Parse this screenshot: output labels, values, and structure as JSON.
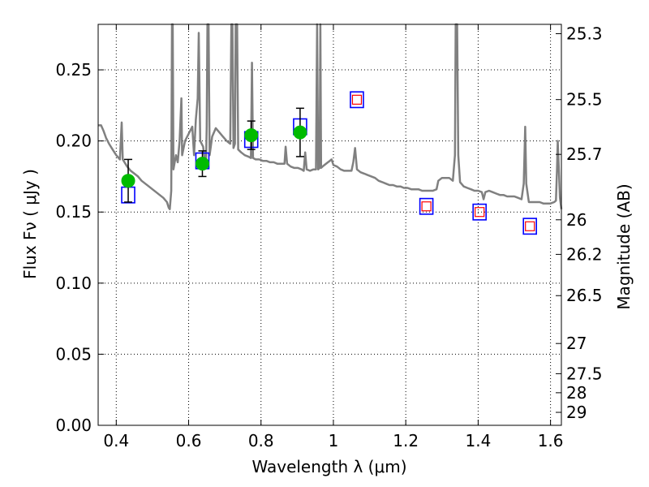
{
  "chart_data": {
    "type": "scatter",
    "xlabel": "Wavelength  λ (μm)",
    "ylabel": "Flux  Fν  ( μJy )",
    "y2label": "Magnitude (AB)",
    "xlim": [
      0.35,
      1.63
    ],
    "ylim": [
      0.0,
      0.282
    ],
    "grid": true,
    "x_ticks": [
      {
        "value": 0.4,
        "label": "0.4"
      },
      {
        "value": 0.6,
        "label": "0.6"
      },
      {
        "value": 0.8,
        "label": "0.8"
      },
      {
        "value": 1.0,
        "label": "1"
      },
      {
        "value": 1.2,
        "label": "1.2"
      },
      {
        "value": 1.4,
        "label": "1.4"
      },
      {
        "value": 1.6,
        "label": "1.6"
      }
    ],
    "y_ticks": [
      {
        "value": 0.0,
        "label": "0.00"
      },
      {
        "value": 0.05,
        "label": "0.05"
      },
      {
        "value": 0.1,
        "label": "0.10"
      },
      {
        "value": 0.15,
        "label": "0.15"
      },
      {
        "value": 0.2,
        "label": "0.20"
      },
      {
        "value": 0.25,
        "label": "0.25"
      }
    ],
    "mag_ticks": [
      {
        "mag": 25.3,
        "label": "25.3"
      },
      {
        "mag": 25.5,
        "label": "25.5"
      },
      {
        "mag": 25.7,
        "label": "25.7"
      },
      {
        "mag": 26.0,
        "label": "26"
      },
      {
        "mag": 26.2,
        "label": "26.2"
      },
      {
        "mag": 26.5,
        "label": "26.5"
      },
      {
        "mag": 27.0,
        "label": "27"
      },
      {
        "mag": 27.5,
        "label": "27.5"
      },
      {
        "mag": 28.0,
        "label": "28"
      },
      {
        "mag": 29.0,
        "label": "29"
      }
    ],
    "model_spectrum": {
      "color": "#808080",
      "points": [
        [
          0.35,
          0.211
        ],
        [
          0.358,
          0.211
        ],
        [
          0.365,
          0.207
        ],
        [
          0.372,
          0.202
        ],
        [
          0.38,
          0.198
        ],
        [
          0.39,
          0.194
        ],
        [
          0.4,
          0.19
        ],
        [
          0.41,
          0.187
        ],
        [
          0.415,
          0.213
        ],
        [
          0.418,
          0.187
        ],
        [
          0.43,
          0.182
        ],
        [
          0.44,
          0.179
        ],
        [
          0.45,
          0.177
        ],
        [
          0.46,
          0.175
        ],
        [
          0.47,
          0.172
        ],
        [
          0.48,
          0.17
        ],
        [
          0.49,
          0.168
        ],
        [
          0.5,
          0.166
        ],
        [
          0.51,
          0.164
        ],
        [
          0.52,
          0.162
        ],
        [
          0.53,
          0.16
        ],
        [
          0.54,
          0.157
        ],
        [
          0.545,
          0.153
        ],
        [
          0.548,
          0.152
        ],
        [
          0.552,
          0.165
        ],
        [
          0.554,
          0.282
        ],
        [
          0.556,
          0.282
        ],
        [
          0.558,
          0.18
        ],
        [
          0.565,
          0.19
        ],
        [
          0.57,
          0.185
        ],
        [
          0.575,
          0.2
        ],
        [
          0.58,
          0.23
        ],
        [
          0.582,
          0.19
        ],
        [
          0.59,
          0.2
        ],
        [
          0.6,
          0.205
        ],
        [
          0.61,
          0.21
        ],
        [
          0.615,
          0.19
        ],
        [
          0.62,
          0.215
        ],
        [
          0.625,
          0.23
        ],
        [
          0.628,
          0.276
        ],
        [
          0.632,
          0.2
        ],
        [
          0.64,
          0.196
        ],
        [
          0.645,
          0.185
        ],
        [
          0.648,
          0.182
        ],
        [
          0.65,
          0.21
        ],
        [
          0.652,
          0.282
        ],
        [
          0.655,
          0.282
        ],
        [
          0.658,
          0.19
        ],
        [
          0.665,
          0.203
        ],
        [
          0.675,
          0.209
        ],
        [
          0.685,
          0.206
        ],
        [
          0.695,
          0.203
        ],
        [
          0.705,
          0.2
        ],
        [
          0.715,
          0.198
        ],
        [
          0.718,
          0.282
        ],
        [
          0.721,
          0.282
        ],
        [
          0.724,
          0.195
        ],
        [
          0.728,
          0.198
        ],
        [
          0.73,
          0.282
        ],
        [
          0.734,
          0.282
        ],
        [
          0.737,
          0.194
        ],
        [
          0.745,
          0.192
        ],
        [
          0.755,
          0.19
        ],
        [
          0.765,
          0.189
        ],
        [
          0.772,
          0.188
        ],
        [
          0.775,
          0.255
        ],
        [
          0.778,
          0.188
        ],
        [
          0.785,
          0.187
        ],
        [
          0.795,
          0.187
        ],
        [
          0.805,
          0.186
        ],
        [
          0.815,
          0.186
        ],
        [
          0.825,
          0.185
        ],
        [
          0.835,
          0.185
        ],
        [
          0.845,
          0.184
        ],
        [
          0.855,
          0.184
        ],
        [
          0.865,
          0.184
        ],
        [
          0.868,
          0.196
        ],
        [
          0.872,
          0.184
        ],
        [
          0.882,
          0.182
        ],
        [
          0.892,
          0.181
        ],
        [
          0.902,
          0.181
        ],
        [
          0.912,
          0.18
        ],
        [
          0.918,
          0.179
        ],
        [
          0.922,
          0.192
        ],
        [
          0.926,
          0.18
        ],
        [
          0.935,
          0.179
        ],
        [
          0.945,
          0.18
        ],
        [
          0.952,
          0.18
        ],
        [
          0.955,
          0.282
        ],
        [
          0.958,
          0.18
        ],
        [
          0.962,
          0.181
        ],
        [
          0.964,
          0.282
        ],
        [
          0.966,
          0.181
        ],
        [
          0.97,
          0.182
        ],
        [
          0.975,
          0.183
        ],
        [
          0.985,
          0.185
        ],
        [
          0.99,
          0.186
        ],
        [
          0.995,
          0.187
        ],
        [
          1.0,
          0.183
        ],
        [
          1.01,
          0.182
        ],
        [
          1.02,
          0.18
        ],
        [
          1.03,
          0.179
        ],
        [
          1.04,
          0.179
        ],
        [
          1.05,
          0.179
        ],
        [
          1.055,
          0.185
        ],
        [
          1.06,
          0.195
        ],
        [
          1.065,
          0.18
        ],
        [
          1.075,
          0.178
        ],
        [
          1.085,
          0.177
        ],
        [
          1.095,
          0.176
        ],
        [
          1.105,
          0.175
        ],
        [
          1.115,
          0.174
        ],
        [
          1.125,
          0.172
        ],
        [
          1.135,
          0.171
        ],
        [
          1.145,
          0.17
        ],
        [
          1.155,
          0.169
        ],
        [
          1.165,
          0.169
        ],
        [
          1.175,
          0.168
        ],
        [
          1.185,
          0.168
        ],
        [
          1.195,
          0.167
        ],
        [
          1.205,
          0.167
        ],
        [
          1.215,
          0.166
        ],
        [
          1.225,
          0.166
        ],
        [
          1.235,
          0.166
        ],
        [
          1.245,
          0.165
        ],
        [
          1.255,
          0.165
        ],
        [
          1.265,
          0.165
        ],
        [
          1.275,
          0.165
        ],
        [
          1.285,
          0.166
        ],
        [
          1.29,
          0.172
        ],
        [
          1.3,
          0.174
        ],
        [
          1.31,
          0.174
        ],
        [
          1.32,
          0.174
        ],
        [
          1.33,
          0.172
        ],
        [
          1.336,
          0.19
        ],
        [
          1.338,
          0.282
        ],
        [
          1.342,
          0.282
        ],
        [
          1.345,
          0.19
        ],
        [
          1.35,
          0.171
        ],
        [
          1.36,
          0.168
        ],
        [
          1.37,
          0.167
        ],
        [
          1.38,
          0.166
        ],
        [
          1.39,
          0.165
        ],
        [
          1.4,
          0.165
        ],
        [
          1.41,
          0.164
        ],
        [
          1.415,
          0.159
        ],
        [
          1.42,
          0.164
        ],
        [
          1.43,
          0.165
        ],
        [
          1.44,
          0.164
        ],
        [
          1.45,
          0.163
        ],
        [
          1.46,
          0.162
        ],
        [
          1.47,
          0.162
        ],
        [
          1.48,
          0.161
        ],
        [
          1.49,
          0.161
        ],
        [
          1.5,
          0.161
        ],
        [
          1.51,
          0.16
        ],
        [
          1.52,
          0.159
        ],
        [
          1.526,
          0.17
        ],
        [
          1.53,
          0.21
        ],
        [
          1.533,
          0.17
        ],
        [
          1.54,
          0.157
        ],
        [
          1.55,
          0.157
        ],
        [
          1.56,
          0.157
        ],
        [
          1.57,
          0.157
        ],
        [
          1.58,
          0.156
        ],
        [
          1.59,
          0.156
        ],
        [
          1.6,
          0.156
        ],
        [
          1.61,
          0.157
        ],
        [
          1.615,
          0.158
        ],
        [
          1.618,
          0.18
        ],
        [
          1.62,
          0.2
        ],
        [
          1.623,
          0.18
        ],
        [
          1.626,
          0.16
        ],
        [
          1.63,
          0.152
        ]
      ]
    },
    "model_photometry": {
      "color": "#0000ff",
      "points": [
        {
          "x": 0.433,
          "y": 0.162,
          "height": 0.011
        },
        {
          "x": 0.638,
          "y": 0.186,
          "height": 0.011
        },
        {
          "x": 0.773,
          "y": 0.201,
          "height": 0.011
        },
        {
          "x": 0.908,
          "y": 0.21,
          "height": 0.011
        },
        {
          "x": 1.065,
          "y": 0.229,
          "height": 0.011
        },
        {
          "x": 1.257,
          "y": 0.154,
          "height": 0.011
        },
        {
          "x": 1.404,
          "y": 0.15,
          "height": 0.011
        },
        {
          "x": 1.543,
          "y": 0.14,
          "height": 0.011
        }
      ]
    },
    "upper_limits": {
      "color": "#ff0000",
      "points": [
        {
          "x": 1.065,
          "y": 0.229
        },
        {
          "x": 1.257,
          "y": 0.154
        },
        {
          "x": 1.404,
          "y": 0.15
        },
        {
          "x": 1.543,
          "y": 0.14
        }
      ]
    },
    "observed": {
      "color": "#00bb00",
      "points": [
        {
          "x": 0.433,
          "y": 0.172,
          "yerr": 0.015
        },
        {
          "x": 0.638,
          "y": 0.184,
          "yerr": 0.009
        },
        {
          "x": 0.773,
          "y": 0.204,
          "yerr": 0.01
        },
        {
          "x": 0.908,
          "y": 0.206,
          "yerr": 0.017
        }
      ]
    }
  }
}
